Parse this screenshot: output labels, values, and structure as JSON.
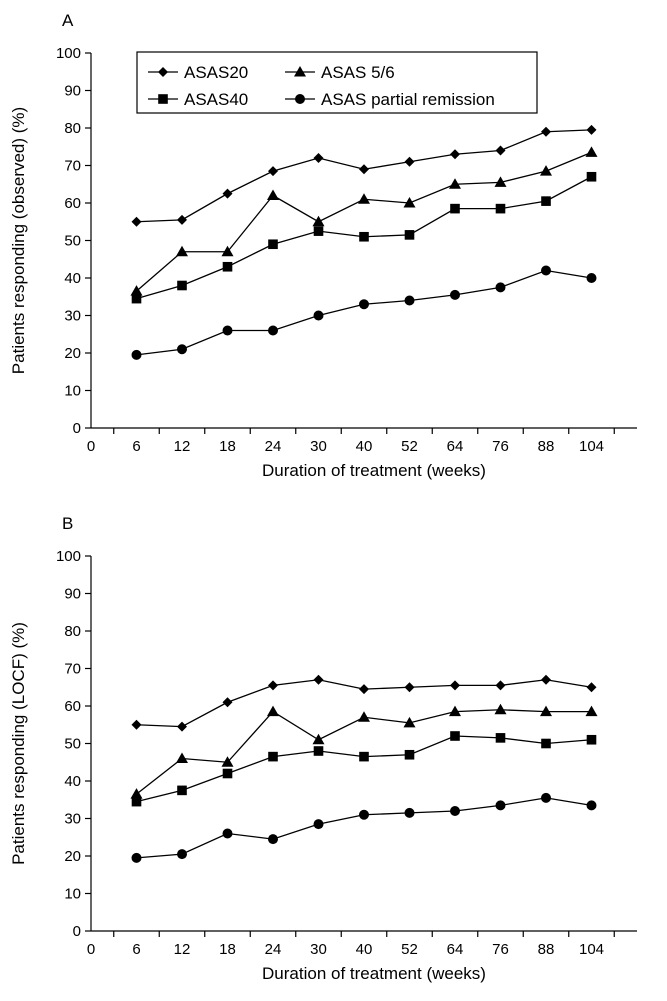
{
  "chart_data": [
    {
      "type": "line",
      "panel_label": "A",
      "xlabel": "Duration of treatment (weeks)",
      "ylabel": "Patients responding (observed) (%)",
      "x_ticks": [
        "0",
        "6",
        "12",
        "18",
        "24",
        "30",
        "40",
        "52",
        "64",
        "76",
        "88",
        "104"
      ],
      "categories": [
        "6",
        "12",
        "18",
        "24",
        "30",
        "40",
        "52",
        "64",
        "76",
        "88",
        "104"
      ],
      "ylim": [
        0,
        100
      ],
      "y_ticks": [
        0,
        10,
        20,
        30,
        40,
        50,
        60,
        70,
        80,
        90,
        100
      ],
      "legend_position": "top-left",
      "series": [
        {
          "name": "ASAS20",
          "marker": "diamond",
          "values": [
            55,
            55.5,
            62.5,
            68.5,
            72,
            69,
            71,
            73,
            74,
            79,
            79.5
          ]
        },
        {
          "name": "ASAS 5/6",
          "marker": "triangle",
          "values": [
            36.5,
            47,
            47,
            62,
            55,
            61,
            60,
            65,
            65.5,
            68.5,
            73.5
          ]
        },
        {
          "name": "ASAS40",
          "marker": "square",
          "values": [
            34.5,
            38,
            43,
            49,
            52.5,
            51,
            51.5,
            58.5,
            58.5,
            60.5,
            67
          ]
        },
        {
          "name": "ASAS partial remission",
          "marker": "circle",
          "values": [
            19.5,
            21,
            26,
            26,
            30,
            33,
            34,
            35.5,
            37.5,
            42,
            40
          ]
        }
      ]
    },
    {
      "type": "line",
      "panel_label": "B",
      "xlabel": "Duration of treatment (weeks)",
      "ylabel": "Patients responding (LOCF) (%)",
      "x_ticks": [
        "0",
        "6",
        "12",
        "18",
        "24",
        "30",
        "40",
        "52",
        "64",
        "76",
        "88",
        "104"
      ],
      "categories": [
        "6",
        "12",
        "18",
        "24",
        "30",
        "40",
        "52",
        "64",
        "76",
        "88",
        "104"
      ],
      "ylim": [
        0,
        100
      ],
      "y_ticks": [
        0,
        10,
        20,
        30,
        40,
        50,
        60,
        70,
        80,
        90,
        100
      ],
      "series": [
        {
          "name": "ASAS20",
          "marker": "diamond",
          "values": [
            55,
            54.5,
            61,
            65.5,
            67,
            64.5,
            65,
            65.5,
            65.5,
            67,
            65
          ]
        },
        {
          "name": "ASAS 5/6",
          "marker": "triangle",
          "values": [
            36.5,
            46,
            45,
            58.5,
            51,
            57,
            55.5,
            58.5,
            59,
            58.5,
            58.5
          ]
        },
        {
          "name": "ASAS40",
          "marker": "square",
          "values": [
            34.5,
            37.5,
            42,
            46.5,
            48,
            46.5,
            47,
            52,
            51.5,
            50,
            51
          ]
        },
        {
          "name": "ASAS partial remission",
          "marker": "circle",
          "values": [
            19.5,
            20.5,
            26,
            24.5,
            28.5,
            31,
            31.5,
            32,
            33.5,
            35.5,
            33.5
          ]
        }
      ]
    }
  ]
}
